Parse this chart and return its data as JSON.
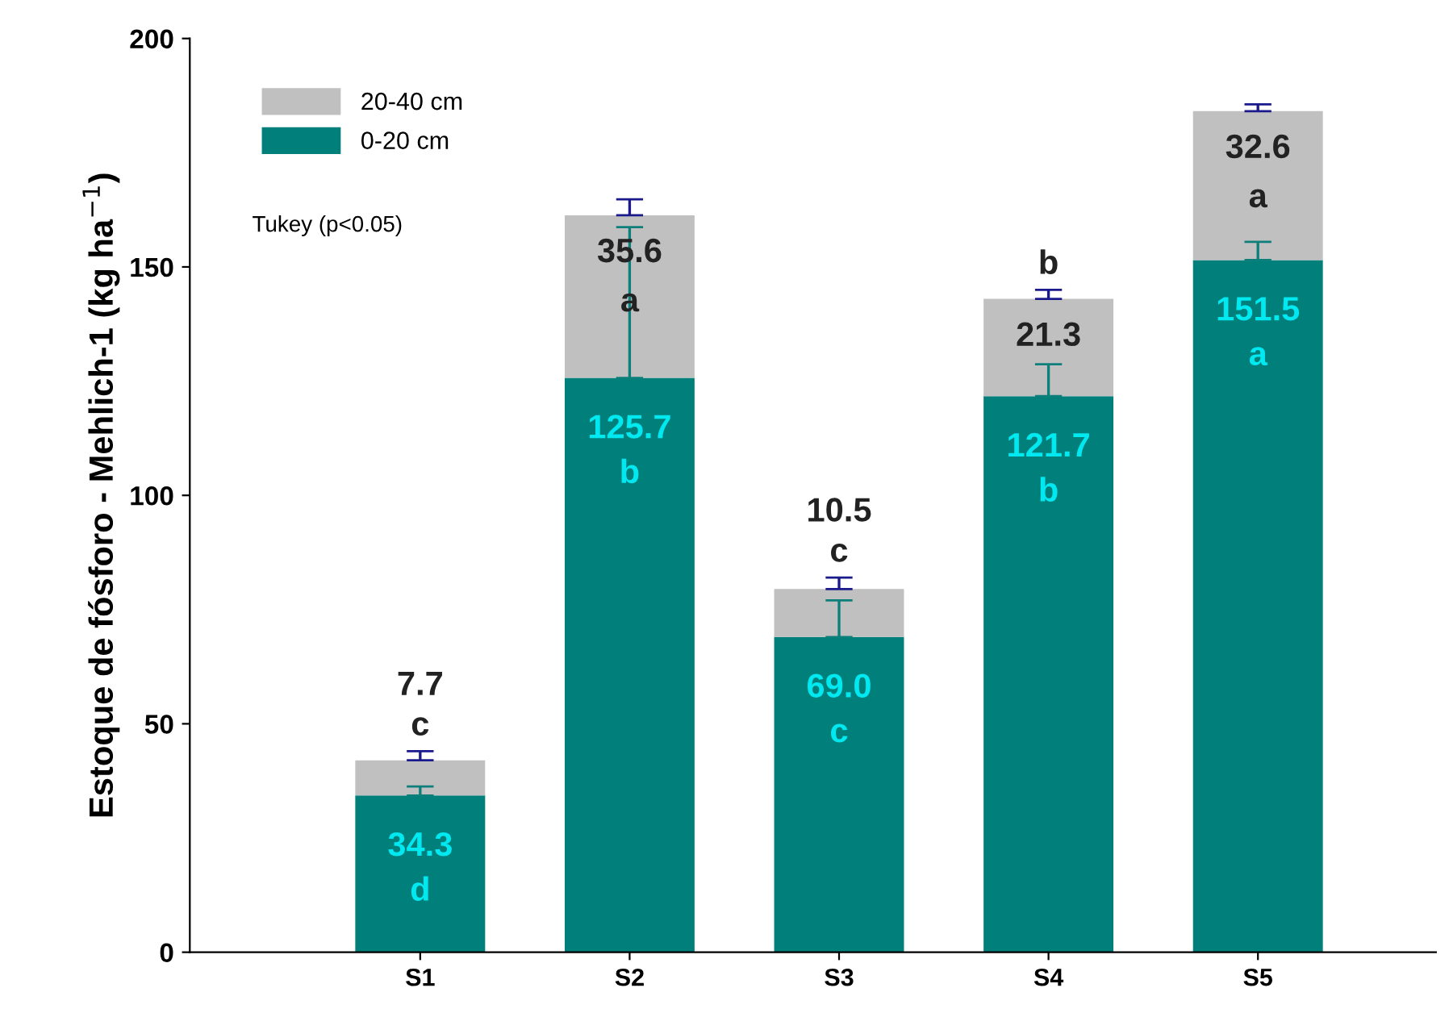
{
  "chart_data": {
    "type": "bar",
    "stacked": true,
    "ylabel": "Estoque de fósforo - Mehlich-1 (kg ha$^{−1}$)",
    "categories": [
      "S1",
      "S2",
      "S3",
      "S4",
      "S5"
    ],
    "series": [
      {
        "name": "0-20 cm",
        "color": "#007f7b",
        "values": [
          34.3,
          125.7,
          69.0,
          121.7,
          151.5
        ],
        "errors": [
          2,
          33,
          8,
          7,
          4
        ],
        "value_labels": [
          "34.3",
          "125.7",
          "69.0",
          "121.7",
          "151.5"
        ]
      },
      {
        "name": "20-40 cm",
        "color": "#c0c0c0",
        "values": [
          7.7,
          35.6,
          10.5,
          21.3,
          32.6
        ],
        "errors": [
          2,
          3.5,
          2.5,
          2,
          1.5
        ],
        "value_labels": [
          "7.7",
          "35.6",
          "10.5",
          "21.3",
          "32.6"
        ]
      }
    ],
    "ylim": [
      0,
      200
    ],
    "yticks": [
      0,
      50,
      100,
      150,
      200
    ],
    "legend": "top left",
    "grid": false,
    "annotations": [
      "Tukey (p<0.05)",
      "d",
      "b",
      "c",
      "b",
      "a",
      "c",
      "a",
      "c",
      "b",
      "a"
    ]
  }
}
